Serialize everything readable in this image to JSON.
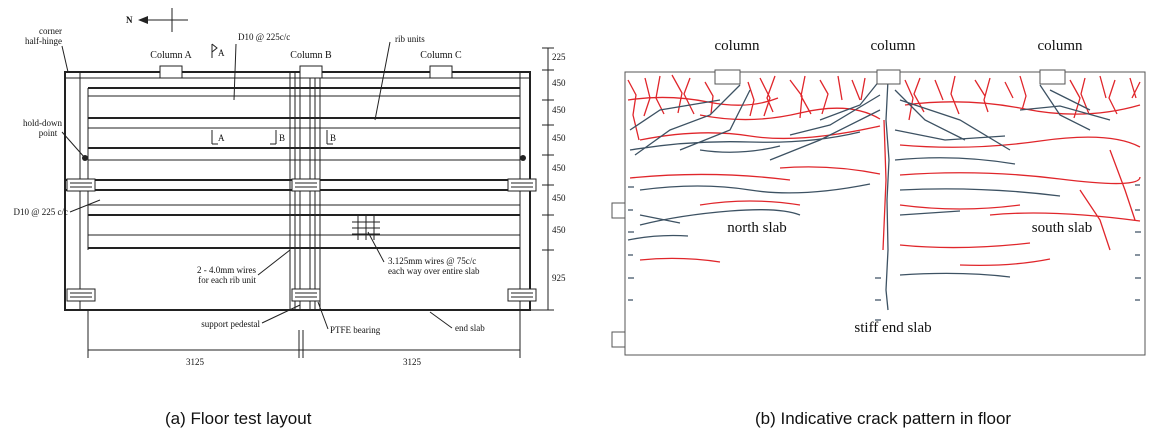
{
  "panel_a": {
    "north_label": "N",
    "corner_half_hinge": [
      "corner",
      "half-hinge"
    ],
    "columns": [
      "Column A",
      "Column B",
      "Column C"
    ],
    "top_bar_label": "D10 @ 225c/c",
    "rib_units": "rib units",
    "section_a": [
      "A",
      "A"
    ],
    "section_b": [
      "B",
      "B"
    ],
    "hold_down_point": [
      "hold-down",
      "point"
    ],
    "left_bar_label": "D10 @ 225 c/c",
    "wires_rib": [
      "2 - 4.0mm wires",
      "for each rib unit"
    ],
    "wires_slab": [
      "3.125mm wires @ 75c/c",
      "each way over entire slab"
    ],
    "support_pedestal": "support pedestal",
    "ptfe_bearing": "PTFE bearing",
    "end_slab": "end slab",
    "vertical_dims": [
      225,
      450,
      450,
      450,
      450,
      450,
      450,
      925
    ],
    "horizontal_dims": [
      3125,
      3125
    ],
    "caption": "(a)  Floor test layout"
  },
  "panel_b": {
    "columns": [
      "column",
      "column",
      "column"
    ],
    "north_slab": "north slab",
    "south_slab": "south slab",
    "stiff_end_slab": "stiff end slab",
    "caption": "(b)  Indicative crack pattern in floor"
  }
}
